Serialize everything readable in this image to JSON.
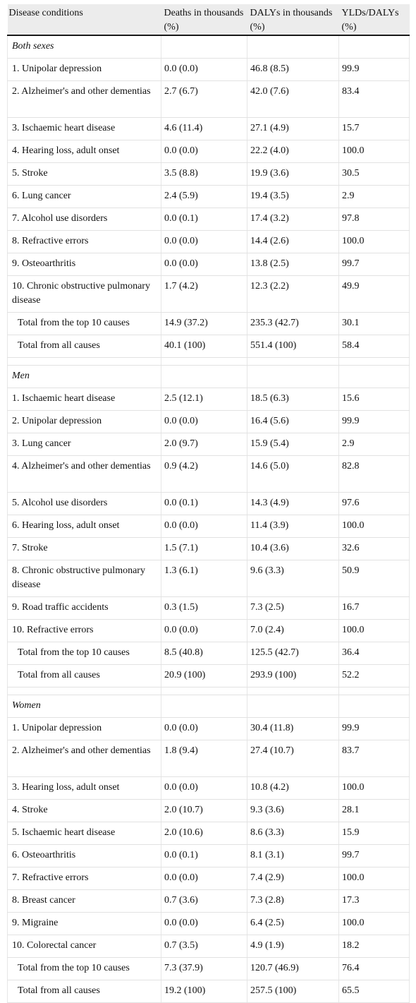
{
  "headers": [
    "Disease conditions",
    "Deaths in thousands (%)",
    "DALYs in thousands (%)",
    "YLDs/DALYs (%)"
  ],
  "sections": [
    {
      "title": "Both sexes",
      "rows": [
        {
          "name": "1. Unipolar depression",
          "deaths": "0.0 (0.0)",
          "dalys": "46.8 (8.5)",
          "ratio": "99.9"
        },
        {
          "name": "2. Alzheimer's and other dementias",
          "deaths": "2.7 (6.7)",
          "dalys": "42.0 (7.6)",
          "ratio": "83.4",
          "wrap": true
        },
        {
          "name": "3. Ischaemic heart disease",
          "deaths": "4.6 (11.4)",
          "dalys": "27.1 (4.9)",
          "ratio": "15.7"
        },
        {
          "name": "4. Hearing loss, adult onset",
          "deaths": "0.0 (0.0)",
          "dalys": "22.2 (4.0)",
          "ratio": "100.0"
        },
        {
          "name": "5. Stroke",
          "deaths": "3.5 (8.8)",
          "dalys": "19.9 (3.6)",
          "ratio": "30.5"
        },
        {
          "name": "6. Lung cancer",
          "deaths": "2.4 (5.9)",
          "dalys": "19.4 (3.5)",
          "ratio": "2.9"
        },
        {
          "name": "7. Alcohol use disorders",
          "deaths": "0.0 (0.1)",
          "dalys": "17.4 (3.2)",
          "ratio": "97.8"
        },
        {
          "name": "8. Refractive errors",
          "deaths": "0.0 (0.0)",
          "dalys": "14.4 (2.6)",
          "ratio": "100.0"
        },
        {
          "name": "9. Osteoarthritis",
          "deaths": "0.0 (0.0)",
          "dalys": "13.8 (2.5)",
          "ratio": "99.7"
        },
        {
          "name": "10. Chronic obstructive pulmonary disease",
          "deaths": "1.7 (4.2)",
          "dalys": "12.3 (2.2)",
          "ratio": "49.9",
          "wrap": true
        }
      ],
      "totals": [
        {
          "name": "Total from the top 10 causes",
          "deaths": "14.9 (37.2)",
          "dalys": "235.3 (42.7)",
          "ratio": "30.1"
        },
        {
          "name": "Total from all causes",
          "deaths": "40.1 (100)",
          "dalys": "551.4 (100)",
          "ratio": "58.4"
        }
      ]
    },
    {
      "title": "Men",
      "rows": [
        {
          "name": "1. Ischaemic heart disease",
          "deaths": "2.5 (12.1)",
          "dalys": "18.5 (6.3)",
          "ratio": "15.6"
        },
        {
          "name": "2. Unipolar depression",
          "deaths": "0.0 (0.0)",
          "dalys": "16.4 (5.6)",
          "ratio": "99.9"
        },
        {
          "name": "3. Lung cancer",
          "deaths": "2.0 (9.7)",
          "dalys": "15.9 (5.4)",
          "ratio": "2.9"
        },
        {
          "name": "4. Alzheimer's and other dementias",
          "deaths": "0.9 (4.2)",
          "dalys": "14.6 (5.0)",
          "ratio": "82.8",
          "wrap": true
        },
        {
          "name": "5. Alcohol use disorders",
          "deaths": "0.0 (0.1)",
          "dalys": "14.3 (4.9)",
          "ratio": "97.6"
        },
        {
          "name": "6. Hearing loss, adult onset",
          "deaths": "0.0 (0.0)",
          "dalys": "11.4 (3.9)",
          "ratio": "100.0"
        },
        {
          "name": "7. Stroke",
          "deaths": "1.5 (7.1)",
          "dalys": "10.4 (3.6)",
          "ratio": "32.6"
        },
        {
          "name": "8. Chronic obstructive pulmonary disease",
          "deaths": "1.3 (6.1)",
          "dalys": "9.6 (3.3)",
          "ratio": "50.9",
          "wrap": true
        },
        {
          "name": "9. Road traffic accidents",
          "deaths": "0.3 (1.5)",
          "dalys": "7.3 (2.5)",
          "ratio": "16.7"
        },
        {
          "name": "10. Refractive errors",
          "deaths": "0.0 (0.0)",
          "dalys": "7.0 (2.4)",
          "ratio": "100.0"
        }
      ],
      "totals": [
        {
          "name": "Total from the top 10 causes",
          "deaths": "8.5 (40.8)",
          "dalys": "125.5 (42.7)",
          "ratio": "36.4"
        },
        {
          "name": "Total from all causes",
          "deaths": "20.9 (100)",
          "dalys": "293.9 (100)",
          "ratio": "52.2"
        }
      ]
    },
    {
      "title": "Women",
      "rows": [
        {
          "name": "1. Unipolar depression",
          "deaths": "0.0 (0.0)",
          "dalys": "30.4 (11.8)",
          "ratio": "99.9"
        },
        {
          "name": "2. Alzheimer's and other dementias",
          "deaths": "1.8 (9.4)",
          "dalys": "27.4 (10.7)",
          "ratio": "83.7",
          "wrap": true
        },
        {
          "name": "3. Hearing loss, adult onset",
          "deaths": "0.0 (0.0)",
          "dalys": "10.8 (4.2)",
          "ratio": "100.0"
        },
        {
          "name": "4. Stroke",
          "deaths": "2.0 (10.7)",
          "dalys": "9.3 (3.6)",
          "ratio": "28.1"
        },
        {
          "name": "5. Ischaemic heart disease",
          "deaths": "2.0 (10.6)",
          "dalys": "8.6 (3.3)",
          "ratio": "15.9"
        },
        {
          "name": "6. Osteoarthritis",
          "deaths": "0.0 (0.1)",
          "dalys": "8.1 (3.1)",
          "ratio": "99.7"
        },
        {
          "name": "7. Refractive errors",
          "deaths": "0.0 (0.0)",
          "dalys": "7.4 (2.9)",
          "ratio": "100.0"
        },
        {
          "name": "8. Breast cancer",
          "deaths": "0.7 (3.6)",
          "dalys": "7.3 (2.8)",
          "ratio": "17.3"
        },
        {
          "name": "9. Migraine",
          "deaths": "0.0 (0.0)",
          "dalys": "6.4 (2.5)",
          "ratio": "100.0"
        },
        {
          "name": "10. Colorectal cancer",
          "deaths": "0.7 (3.5)",
          "dalys": "4.9 (1.9)",
          "ratio": "18.2"
        }
      ],
      "totals": [
        {
          "name": "Total from the top 10 causes",
          "deaths": "7.3 (37.9)",
          "dalys": "120.7 (46.9)",
          "ratio": "76.4"
        },
        {
          "name": "Total from all causes",
          "deaths": "19.2 (100)",
          "dalys": "257.5 (100)",
          "ratio": "65.5"
        }
      ]
    }
  ]
}
